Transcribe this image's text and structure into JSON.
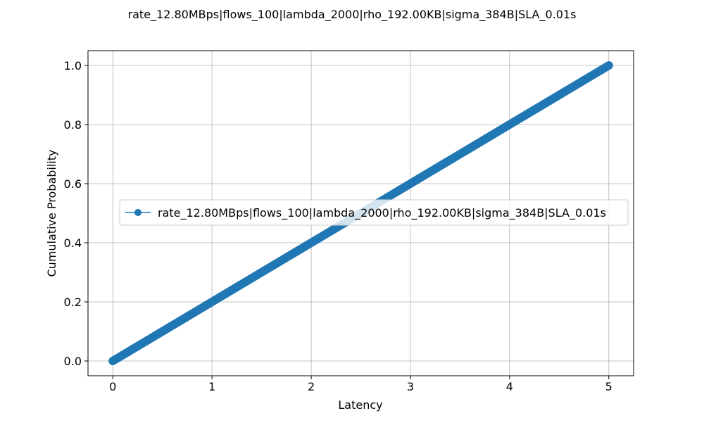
{
  "chart_data": {
    "type": "line",
    "title": "rate_12.80MBps|flows_100|lambda_2000|rho_192.00KB|sigma_384B|SLA_0.01s",
    "xlabel": "Latency",
    "ylabel": "Cumulative Probability",
    "xlim": [
      -0.25,
      5.25
    ],
    "ylim": [
      -0.05,
      1.05
    ],
    "x_ticks": [
      0,
      1,
      2,
      3,
      4,
      5
    ],
    "y_ticks": [
      0.0,
      0.2,
      0.4,
      0.6,
      0.8,
      1.0
    ],
    "x_tick_labels": [
      "0",
      "1",
      "2",
      "3",
      "4",
      "5"
    ],
    "y_tick_labels": [
      "0.0",
      "0.2",
      "0.4",
      "0.6",
      "0.8",
      "1.0"
    ],
    "grid": true,
    "legend_position": "center-right",
    "series": [
      {
        "name": "rate_12.80MBps|flows_100|lambda_2000|rho_192.00KB|sigma_384B|SLA_0.01s",
        "color": "#1f77b4",
        "marker": "circle",
        "x": [
          0,
          0.25,
          0.5,
          0.75,
          1,
          1.25,
          1.5,
          1.75,
          2,
          2.25,
          2.5,
          2.75,
          3,
          3.25,
          3.5,
          3.75,
          4,
          4.25,
          4.5,
          4.75,
          5
        ],
        "y": [
          0,
          0.05,
          0.1,
          0.15,
          0.2,
          0.25,
          0.3,
          0.35,
          0.4,
          0.45,
          0.5,
          0.55,
          0.6,
          0.65,
          0.7,
          0.75,
          0.8,
          0.85,
          0.9,
          0.95,
          1.0
        ]
      }
    ]
  }
}
